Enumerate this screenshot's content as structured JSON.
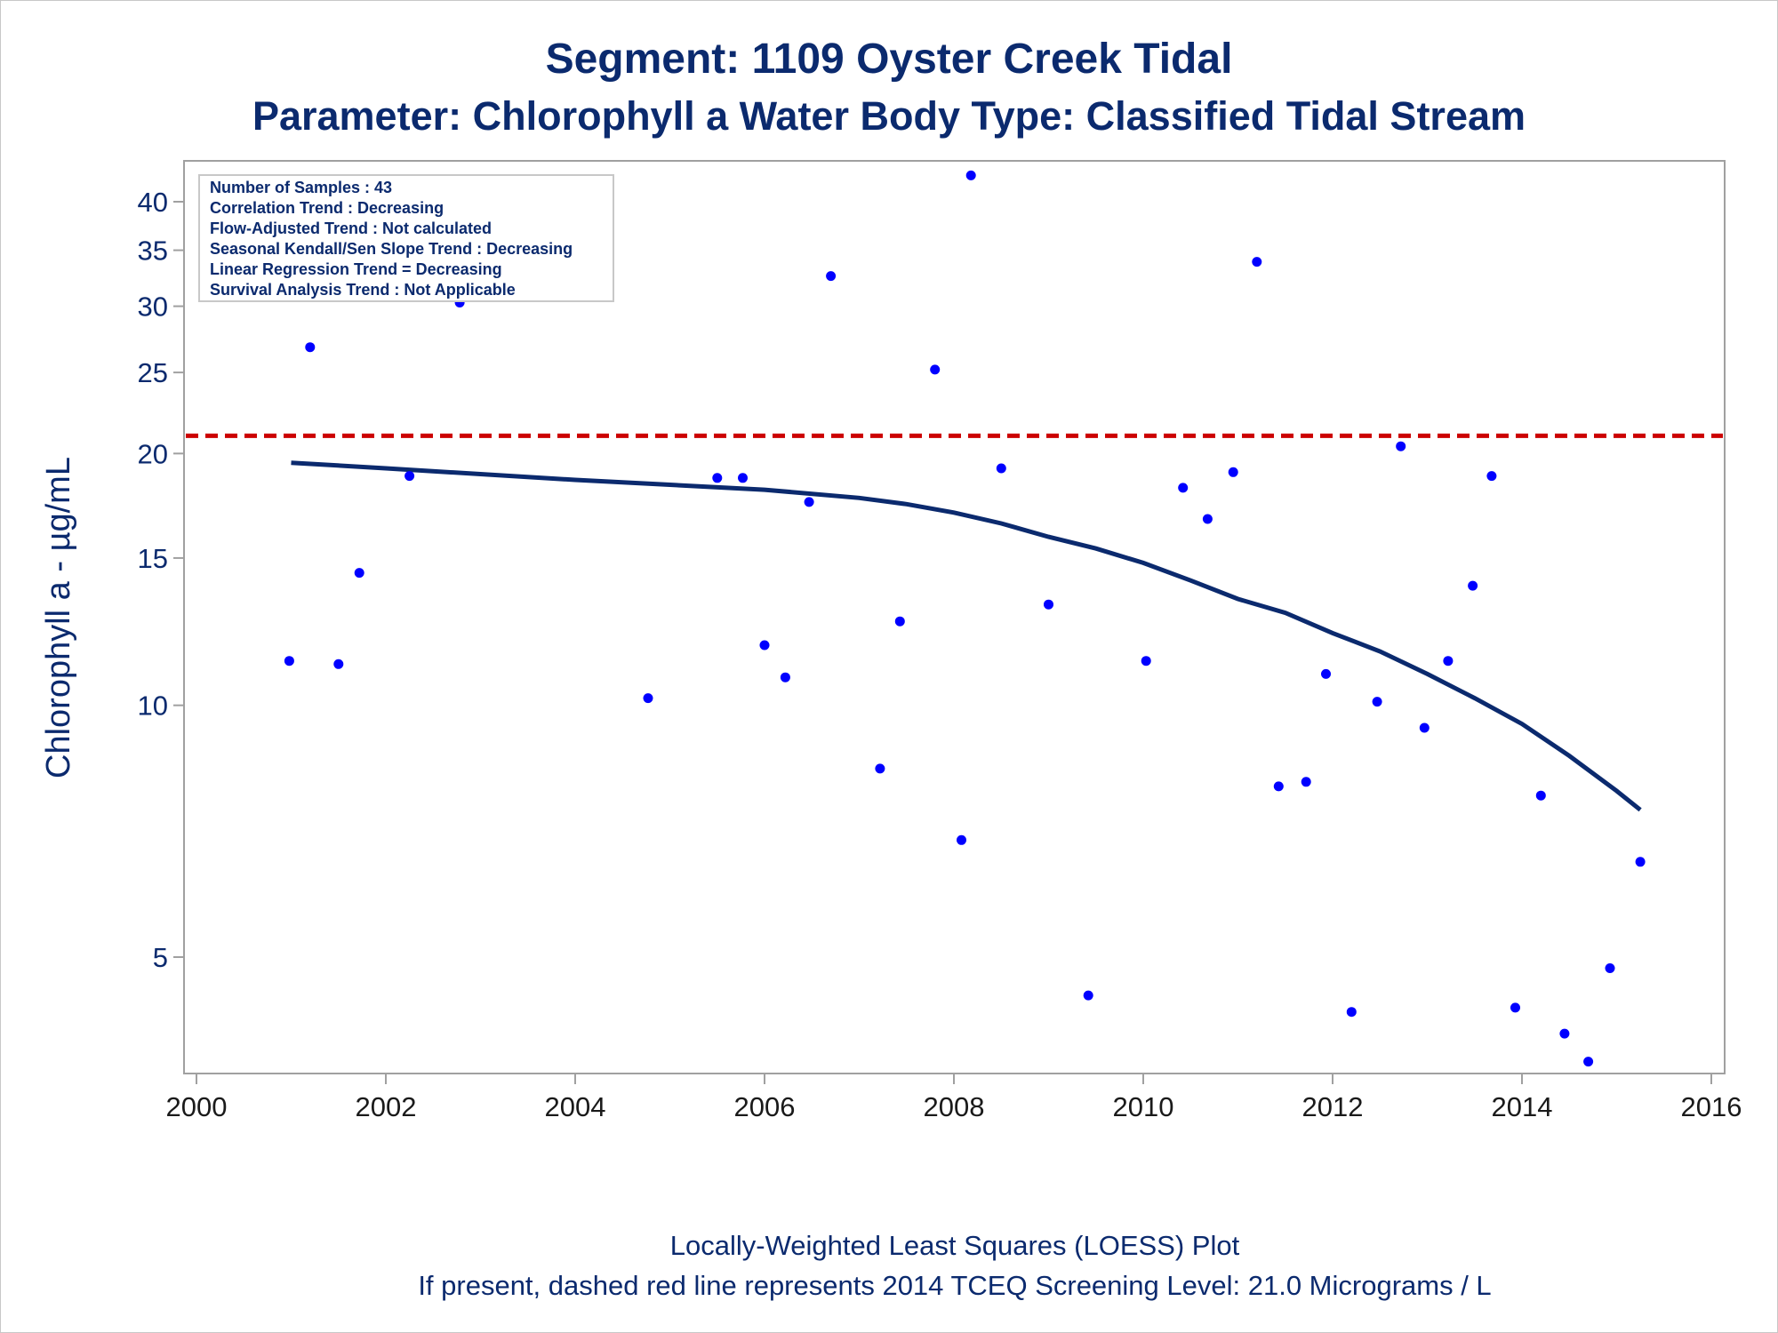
{
  "colors": {
    "text": "#0b2a6e",
    "axis_text": "#1a1a1a",
    "points": "#0000ff",
    "loess": "#0b2a6e",
    "screening": "#cc0000",
    "frame": "#a0a0a0"
  },
  "chart_data": {
    "type": "scatter",
    "title": "Segment: 1109  Oyster Creek Tidal",
    "subtitle": "Parameter: Chlorophyll a   Water Body Type: Classified Tidal Stream",
    "xlabel": "",
    "ylabel": "Chlorophyll a -  µg/mL",
    "xlim": [
      2000,
      2016
    ],
    "ylim": [
      3.3,
      44
    ],
    "y_scale": "log",
    "x_ticks": [
      2000,
      2002,
      2004,
      2006,
      2008,
      2010,
      2012,
      2014,
      2016
    ],
    "y_ticks": [
      5,
      10,
      15,
      20,
      25,
      30,
      35,
      40
    ],
    "grid": false,
    "info_box": {
      "placement": "top-left",
      "lines": [
        "Number of Samples : 43",
        "Correlation Trend : Decreasing",
        "Flow-Adjusted Trend : Not calculated",
        "Seasonal Kendall/Sen Slope Trend : Decreasing",
        "Linear Regression Trend = Decreasing",
        "Survival Analysis Trend : Not Applicable"
      ]
    },
    "screening_level": {
      "y": 21.0,
      "style": "dashed"
    },
    "points": [
      {
        "x": 2000.98,
        "y": 11.3
      },
      {
        "x": 2001.2,
        "y": 26.8
      },
      {
        "x": 2001.5,
        "y": 11.2
      },
      {
        "x": 2001.72,
        "y": 14.4
      },
      {
        "x": 2002.25,
        "y": 18.8
      },
      {
        "x": 2002.78,
        "y": 30.3
      },
      {
        "x": 2003.7,
        "y": 32.1
      },
      {
        "x": 2004.77,
        "y": 10.2
      },
      {
        "x": 2005.5,
        "y": 18.7
      },
      {
        "x": 2005.77,
        "y": 18.7
      },
      {
        "x": 2006.0,
        "y": 11.8
      },
      {
        "x": 2006.22,
        "y": 10.8
      },
      {
        "x": 2006.47,
        "y": 17.5
      },
      {
        "x": 2006.7,
        "y": 32.6
      },
      {
        "x": 2007.22,
        "y": 8.4
      },
      {
        "x": 2007.43,
        "y": 12.6
      },
      {
        "x": 2007.8,
        "y": 25.2
      },
      {
        "x": 2008.08,
        "y": 6.9
      },
      {
        "x": 2008.18,
        "y": 43.0
      },
      {
        "x": 2008.5,
        "y": 19.2
      },
      {
        "x": 2009.0,
        "y": 13.2
      },
      {
        "x": 2009.42,
        "y": 4.5
      },
      {
        "x": 2010.03,
        "y": 11.3
      },
      {
        "x": 2010.42,
        "y": 18.2
      },
      {
        "x": 2010.68,
        "y": 16.7
      },
      {
        "x": 2010.95,
        "y": 19.0
      },
      {
        "x": 2011.2,
        "y": 33.9
      },
      {
        "x": 2011.43,
        "y": 8.0
      },
      {
        "x": 2011.72,
        "y": 8.1
      },
      {
        "x": 2011.93,
        "y": 10.9
      },
      {
        "x": 2012.2,
        "y": 4.3
      },
      {
        "x": 2012.47,
        "y": 10.1
      },
      {
        "x": 2012.72,
        "y": 20.4
      },
      {
        "x": 2012.97,
        "y": 9.4
      },
      {
        "x": 2013.22,
        "y": 11.3
      },
      {
        "x": 2013.48,
        "y": 13.9
      },
      {
        "x": 2013.68,
        "y": 18.8
      },
      {
        "x": 2013.93,
        "y": 4.35
      },
      {
        "x": 2014.2,
        "y": 7.8
      },
      {
        "x": 2014.45,
        "y": 4.05
      },
      {
        "x": 2014.7,
        "y": 3.75
      },
      {
        "x": 2014.93,
        "y": 4.85
      },
      {
        "x": 2015.25,
        "y": 6.5
      }
    ],
    "loess": [
      {
        "x": 2001.0,
        "y": 19.5
      },
      {
        "x": 2002.0,
        "y": 19.2
      },
      {
        "x": 2003.0,
        "y": 18.9
      },
      {
        "x": 2004.0,
        "y": 18.6
      },
      {
        "x": 2005.0,
        "y": 18.35
      },
      {
        "x": 2006.0,
        "y": 18.1
      },
      {
        "x": 2007.0,
        "y": 17.7
      },
      {
        "x": 2007.5,
        "y": 17.4
      },
      {
        "x": 2008.0,
        "y": 17.0
      },
      {
        "x": 2008.5,
        "y": 16.5
      },
      {
        "x": 2009.0,
        "y": 15.9
      },
      {
        "x": 2009.5,
        "y": 15.4
      },
      {
        "x": 2010.0,
        "y": 14.8
      },
      {
        "x": 2010.5,
        "y": 14.1
      },
      {
        "x": 2011.0,
        "y": 13.4
      },
      {
        "x": 2011.5,
        "y": 12.9
      },
      {
        "x": 2012.0,
        "y": 12.2
      },
      {
        "x": 2012.5,
        "y": 11.6
      },
      {
        "x": 2013.0,
        "y": 10.9
      },
      {
        "x": 2013.5,
        "y": 10.2
      },
      {
        "x": 2014.0,
        "y": 9.5
      },
      {
        "x": 2014.5,
        "y": 8.7
      },
      {
        "x": 2015.0,
        "y": 7.9
      },
      {
        "x": 2015.25,
        "y": 7.5
      }
    ]
  },
  "footer": {
    "line1": "Locally-Weighted Least Squares (LOESS) Plot",
    "line2": "If present, dashed red line represents 2014 TCEQ Screening Level: 21.0 Micrograms / L"
  }
}
